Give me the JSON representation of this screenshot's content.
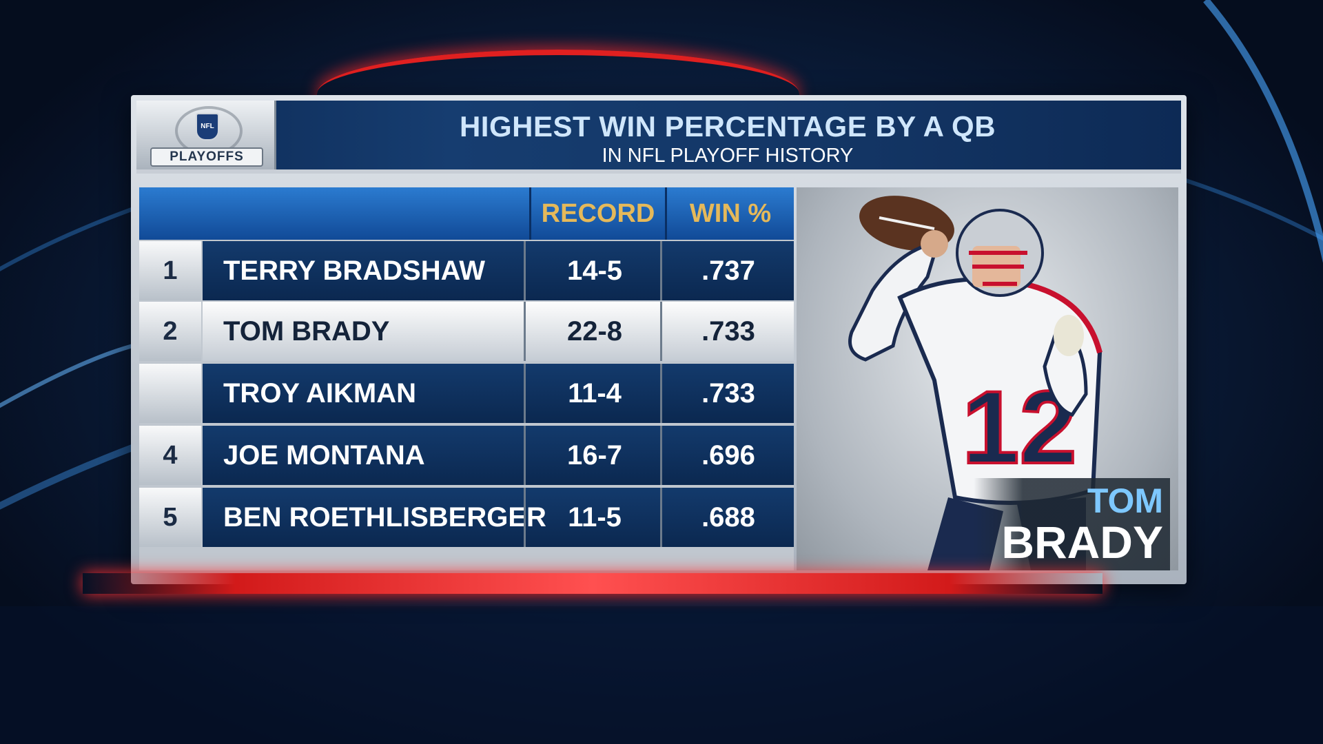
{
  "logo": {
    "label": "PLAYOFFS",
    "shield_text": "NFL"
  },
  "header": {
    "title": "HIGHEST WIN PERCENTAGE BY A QB",
    "subtitle": "IN NFL PLAYOFF HISTORY"
  },
  "table": {
    "columns": [
      "RECORD",
      "WIN %"
    ],
    "rows": [
      {
        "rank": "1",
        "name": "TERRY BRADSHAW",
        "record": "14-5",
        "win_pct": ".737",
        "highlight": false
      },
      {
        "rank": "2",
        "name": "TOM BRADY",
        "record": "22-8",
        "win_pct": ".733",
        "highlight": true
      },
      {
        "rank": "",
        "name": "TROY AIKMAN",
        "record": "11-4",
        "win_pct": ".733",
        "highlight": false
      },
      {
        "rank": "4",
        "name": "JOE MONTANA",
        "record": "16-7",
        "win_pct": ".696",
        "highlight": false
      },
      {
        "rank": "5",
        "name": "BEN ROETHLISBERGER",
        "record": "11-5",
        "win_pct": ".688",
        "highlight": false
      }
    ]
  },
  "photo": {
    "first_name": "TOM",
    "last_name": "BRADY",
    "jersey_number": "12",
    "colors": {
      "jersey": "#f4f5f7",
      "navy": "#1a2a4f",
      "red": "#c8102e",
      "helmet": "#c9ced4"
    }
  }
}
